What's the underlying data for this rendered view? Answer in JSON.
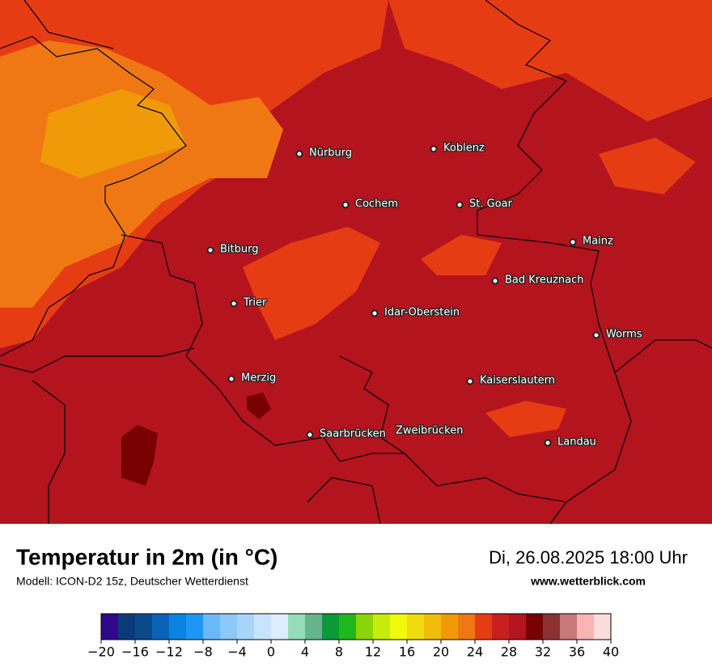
{
  "map": {
    "cities": [
      "Nürburg",
      "Koblenz",
      "Cochem",
      "St. Goar",
      "Mainz",
      "Bitburg",
      "Bad Kreuznach",
      "Trier",
      "Idar-Oberstein",
      "Worms",
      "Merzig",
      "Kaiserslautern",
      "Saarbrücken",
      "Zweibrücken",
      "Landau"
    ]
  },
  "footer": {
    "title": "Temperatur in 2m (in °C)",
    "subtitle": "Modell: ICON-D2 15z, Deutscher Wetterdienst",
    "date": "Di, 26.08.2025 18:00 Uhr",
    "source": "www.wetterblick.com"
  },
  "colorbar": {
    "lim": [
      -20,
      40
    ],
    "colors": [
      "#2e0a8a",
      "#0a3a7a",
      "#0a4a8a",
      "#0a62b8",
      "#0a84e0",
      "#1c98f4",
      "#6ab8f8",
      "#8cc8fa",
      "#a8d4fa",
      "#c8e4fc",
      "#dcedfd",
      "#96dcb8",
      "#64b48c",
      "#0a9a3a",
      "#1eb81e",
      "#8cd40a",
      "#c8ec0a",
      "#f0fa0a",
      "#f0dc0a",
      "#f0be0a",
      "#f09a0a",
      "#f07814",
      "#e63c14",
      "#c81e1e",
      "#b4141e",
      "#780000",
      "#8c3232",
      "#c87878",
      "#fab4b4",
      "#fadcdc"
    ],
    "ticks": [
      {
        "value": -20,
        "label": "−20"
      },
      {
        "value": -16,
        "label": "−16"
      },
      {
        "value": -12,
        "label": "−12"
      },
      {
        "value": -8,
        "label": "−8"
      },
      {
        "value": -4,
        "label": "−4"
      },
      0,
      4,
      8,
      12,
      16,
      20,
      24,
      28,
      32,
      36,
      40
    ]
  }
}
